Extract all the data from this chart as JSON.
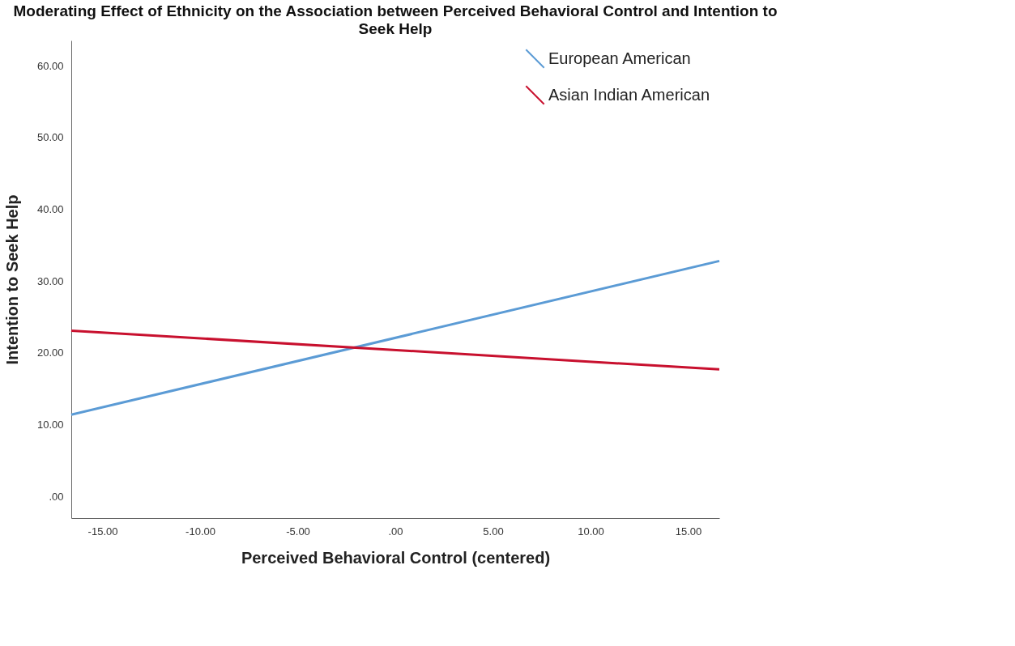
{
  "chart_data": {
    "type": "line",
    "title": "Moderating Effect of Ethnicity on the Association between Perceived Behavioral Control and Intention to Seek Help",
    "xlabel": "Perceived Behavioral Control (centered)",
    "ylabel": "Intention to Seek Help",
    "x": [
      -16.6,
      16.6
    ],
    "series": [
      {
        "name": "European American",
        "color": "#5b9bd5",
        "values": [
          11.4,
          32.8
        ]
      },
      {
        "name": "Asian Indian American",
        "color": "#c8102e",
        "values": [
          23.1,
          17.7
        ]
      }
    ],
    "xlim": [
      -16.6,
      16.6
    ],
    "ylim": [
      -3,
      63.5
    ],
    "xticks": [
      {
        "value": -15,
        "label": "-15.00"
      },
      {
        "value": -10,
        "label": "-10.00"
      },
      {
        "value": -5,
        "label": "-5.00"
      },
      {
        "value": 0,
        "label": ".00"
      },
      {
        "value": 5,
        "label": "5.00"
      },
      {
        "value": 10,
        "label": "10.00"
      },
      {
        "value": 15,
        "label": "15.00"
      }
    ],
    "yticks": [
      {
        "value": 0,
        "label": ".00"
      },
      {
        "value": 10,
        "label": "10.00"
      },
      {
        "value": 20,
        "label": "20.00"
      },
      {
        "value": 30,
        "label": "30.00"
      },
      {
        "value": 40,
        "label": "40.00"
      },
      {
        "value": 50,
        "label": "50.00"
      },
      {
        "value": 60,
        "label": "60.00"
      }
    ],
    "grid": false,
    "legend": "top right",
    "marker": "none",
    "line_style": "solid"
  }
}
